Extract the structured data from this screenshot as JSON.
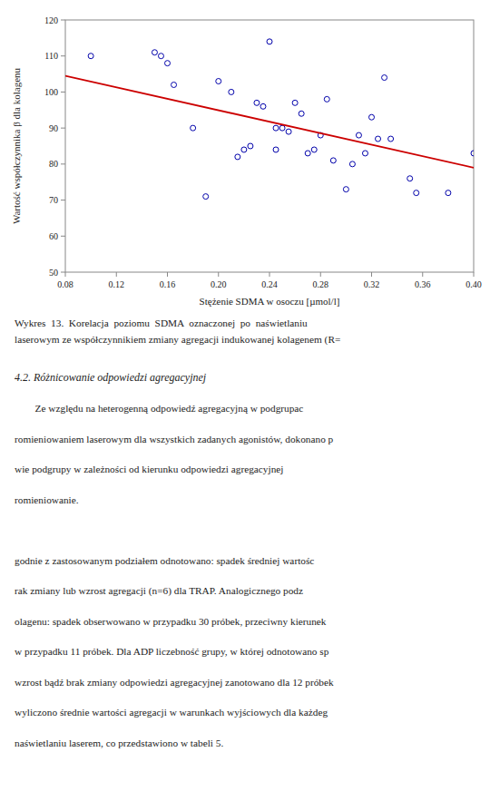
{
  "chart_data": {
    "type": "scatter",
    "xlabel": "Stężenie SDMA w osoczu [µmol/l]",
    "ylabel": "Wartość współczynnika β dla kolagenu",
    "series": [
      {
        "type": "scatter",
        "marker": "circle",
        "color": "#0000AA",
        "x": [
          0.1,
          0.15,
          0.155,
          0.16,
          0.165,
          0.18,
          0.19,
          0.2,
          0.21,
          0.215,
          0.22,
          0.225,
          0.23,
          0.235,
          0.24,
          0.245,
          0.245,
          0.25,
          0.255,
          0.26,
          0.265,
          0.27,
          0.275,
          0.28,
          0.285,
          0.29,
          0.3,
          0.305,
          0.31,
          0.315,
          0.32,
          0.325,
          0.33,
          0.335,
          0.35,
          0.355,
          0.38,
          0.4
        ],
        "values": [
          110,
          111,
          110,
          108,
          102,
          90,
          71,
          103,
          100,
          82,
          84,
          85,
          97,
          96,
          114,
          90,
          84,
          90,
          89,
          97,
          94,
          83,
          84,
          88,
          98,
          81,
          73,
          80,
          88,
          83,
          93,
          87,
          104,
          87,
          76,
          72,
          72,
          83
        ]
      },
      {
        "type": "line",
        "line_style": "solid",
        "color": "#CC0000",
        "x": [
          0.08,
          0.4
        ],
        "values": [
          104.5,
          79.0
        ]
      }
    ],
    "xlim": [
      0.08,
      0.4
    ],
    "ylim": [
      50,
      120
    ],
    "xticks": [
      0.08,
      0.12,
      0.16,
      {
        "value": 0.2,
        "label": "0.20"
      },
      0.24,
      0.28,
      0.32,
      0.36,
      {
        "value": 0.4,
        "label": "0.40"
      }
    ],
    "yticks": [
      50,
      60,
      70,
      80,
      90,
      100,
      110,
      120
    ],
    "grid": false,
    "annotations": [
      [
        "Wykres  13.  Korelacja  poziomu  SDMA  oznaczonej  po  naświetlaniu",
        "laserowym ze współczynnikiem zmiany agregacji indukowanej kolagenem (R="
      ],
      [
        "4.2. Różnicowanie odpowiedzi agregacyjnej"
      ],
      [
        "        Ze względu na heterogenną odpowiedź agregacyjną w podgrupac",
        "romieniowaniem laserowym dla wszystkich zadanych agonistów, dokonano p",
        "wie podgrupy w zależności od kierunku odpowiedzi agregacyjnej",
        "romieniowanie."
      ],
      [
        "godnie z zastosowanym podziałem odnotowano: spadek średniej wartośc",
        "rak zmiany lub wzrost agregacji (n=6) dla TRAP. Analogicznego podz",
        "olagenu: spadek obserwowano w przypadku 30 próbek, przeciwny kierunek",
        "w przypadku 11 próbek. Dla ADP liczebność grupy, w której odnotowano sp",
        "wzrost bądź brak zmiany odpowiedzi agregacyjnej zanotowano dla 12 próbek",
        "wyliczono średnie wartości agregacji w warunkach wyjściowych dla każdeg",
        "naświetlaniu laserem, co przedstawiono w tabeli 5."
      ]
    ]
  }
}
